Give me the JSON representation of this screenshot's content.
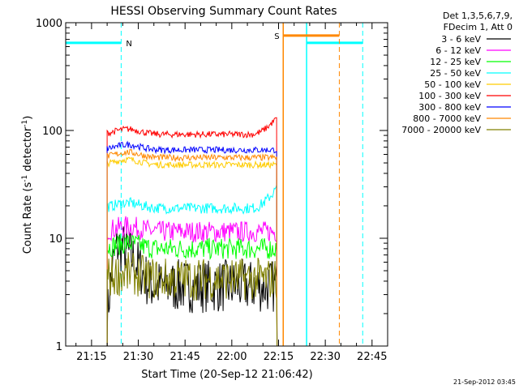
{
  "chart_data": {
    "type": "line",
    "title": "HESSI Observing Summary Count Rates",
    "xlabel": "Start Time (20-Sep-12 21:06:42)",
    "ylabel_main": "Count Rate (s",
    "ylabel_sup1": "-1",
    "ylabel_mid": " detector",
    "ylabel_sup2": "-1",
    "ylabel_end": ")",
    "y_scale": "log",
    "ylim": [
      1,
      1000
    ],
    "xlim": [
      "21:06:42",
      "22:50:00"
    ],
    "x_ticks": [
      "21:15",
      "21:30",
      "21:45",
      "22:00",
      "22:15",
      "22:30",
      "22:45"
    ],
    "y_ticks": [
      "1",
      "10",
      "100",
      "1000"
    ],
    "legend_header": [
      "Det 1,3,5,6,7,9,",
      "FDecim 1, Att 0"
    ],
    "legend_position": "right",
    "footer_timestamp": "21-Sep-2012 03:45",
    "series": [
      {
        "name": "3 - 6 keV",
        "color": "#000000",
        "start": "21:20:00",
        "end": "22:14:30",
        "level": 3.6,
        "ramp_from": 1.5,
        "noise": 0.25
      },
      {
        "name": "6 - 12 keV",
        "color": "#ff00ff",
        "start": "21:20:00",
        "end": "22:14:30",
        "level": 11.5,
        "noise": 0.1
      },
      {
        "name": "12 - 25 keV",
        "color": "#00ff00",
        "start": "21:20:00",
        "end": "22:14:30",
        "level": 8.0,
        "noise": 0.1
      },
      {
        "name": "25 - 50 keV",
        "color": "#00ffff",
        "start": "21:20:00",
        "end": "22:14:30",
        "level": 19.0,
        "noise": 0.05,
        "end_rise": 29
      },
      {
        "name": "50 - 100 keV",
        "color": "#ffcc00",
        "start": "21:20:00",
        "end": "22:14:30",
        "level": 48.0,
        "noise": 0.03
      },
      {
        "name": "100 - 300 keV",
        "color": "#ff0000",
        "start": "21:20:00",
        "end": "22:14:30",
        "level": 92.0,
        "noise": 0.03,
        "end_rise": 130
      },
      {
        "name": "300 - 800 keV",
        "color": "#0000ff",
        "start": "21:20:00",
        "end": "22:14:30",
        "level": 66.0,
        "noise": 0.03
      },
      {
        "name": "800 - 7000 keV",
        "color": "#ff8800",
        "start": "21:20:00",
        "end": "22:14:30",
        "level": 56.0,
        "noise": 0.03
      },
      {
        "name": "7000 - 20000 keV",
        "color": "#808000",
        "start": "21:20:00",
        "end": "22:14:30",
        "level": 4.2,
        "noise": 0.2
      }
    ],
    "markers": [
      {
        "label": "N",
        "color": "#00ffff",
        "kind": "night",
        "from": "21:06:42",
        "to": "21:24:30",
        "level": 650
      },
      {
        "label": "",
        "color": "#00ffff",
        "kind": "night",
        "from": "22:24:00",
        "to": "22:42:00",
        "level": 650
      },
      {
        "label": "S",
        "color": "#ff8800",
        "kind": "saa",
        "from": "22:16:30",
        "to": "22:34:30",
        "level": 760
      }
    ]
  }
}
